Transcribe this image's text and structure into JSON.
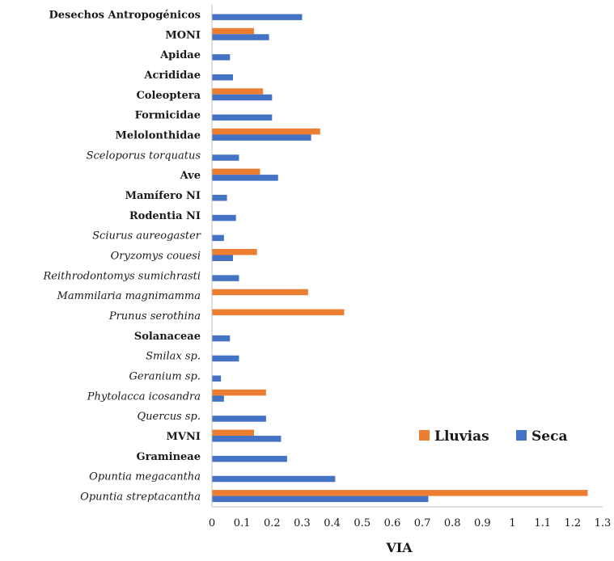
{
  "chart_data": {
    "type": "bar",
    "orientation": "horizontal",
    "categories": [
      {
        "label": "Desechos Antropogénicos",
        "style": "bold"
      },
      {
        "label": "MONI",
        "style": "bold"
      },
      {
        "label": "Apidae",
        "style": "bold"
      },
      {
        "label": "Acrididae",
        "style": "bold"
      },
      {
        "label": "Coleoptera",
        "style": "bold"
      },
      {
        "label": "Formicidae",
        "style": "bold"
      },
      {
        "label": "Melolonthidae",
        "style": "bold"
      },
      {
        "label": "Sceloporus torquatus",
        "style": "italic"
      },
      {
        "label": "Ave",
        "style": "bold"
      },
      {
        "label": "Mamífero NI",
        "style": "bold"
      },
      {
        "label": "Rodentia NI",
        "style": "bold"
      },
      {
        "label": "Sciurus aureogaster",
        "style": "italic"
      },
      {
        "label": "Oryzomys couesi",
        "style": "italic"
      },
      {
        "label": "Reithrodontomys sumichrasti",
        "style": "italic"
      },
      {
        "label": "Mammilaria magnimamma",
        "style": "italic"
      },
      {
        "label": "Prunus serothina",
        "style": "italic"
      },
      {
        "label": "Solanaceae",
        "style": "bold"
      },
      {
        "label": "Smilax sp.",
        "style": "italic"
      },
      {
        "label": "Geranium sp.",
        "style": "italic"
      },
      {
        "label": "Phytolacca icosandra",
        "style": "italic"
      },
      {
        "label": "Quercus sp.",
        "style": "italic"
      },
      {
        "label": "MVNI",
        "style": "bold"
      },
      {
        "label": "Gramineae",
        "style": "bold"
      },
      {
        "label": "Opuntia megacantha",
        "style": "italic"
      },
      {
        "label": "Opuntia streptacantha",
        "style": "italic"
      }
    ],
    "series": [
      {
        "name": "Lluvias",
        "color": "#ED7D31",
        "values": [
          0,
          0.14,
          0,
          0,
          0.17,
          0,
          0.36,
          0,
          0.16,
          0,
          0,
          0,
          0.15,
          0,
          0.32,
          0.44,
          0,
          0,
          0,
          0.18,
          0,
          0.14,
          0,
          0,
          1.25
        ]
      },
      {
        "name": "Seca",
        "color": "#4472C4",
        "values": [
          0.3,
          0.19,
          0.06,
          0.07,
          0.2,
          0.2,
          0.33,
          0.09,
          0.22,
          0.05,
          0.08,
          0.04,
          0.07,
          0.09,
          0,
          0,
          0.06,
          0.09,
          0.03,
          0.04,
          0.18,
          0.23,
          0.25,
          0.41,
          0.72
        ]
      }
    ],
    "xlabel": "VIA",
    "xlim": [
      0,
      1.3
    ],
    "xticks": [
      "0",
      "0.1",
      "0.2",
      "0.3",
      "0.4",
      "0.5",
      "0.6",
      "0.7",
      "0.8",
      "0.9",
      "1",
      "1.1",
      "1.2",
      "1.3"
    ],
    "grid": false,
    "legend_position": "right"
  }
}
